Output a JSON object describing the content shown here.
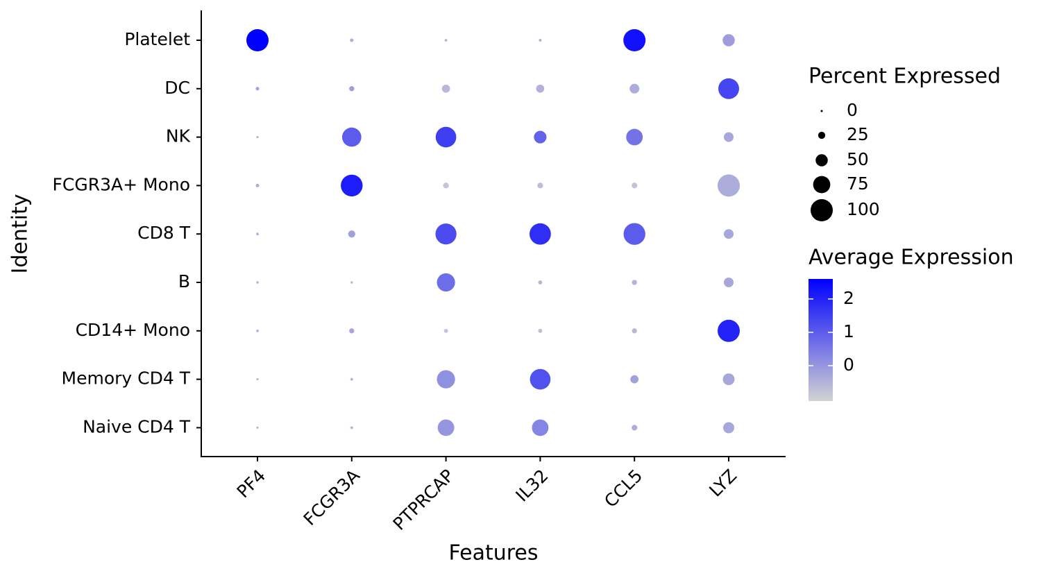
{
  "chart_data": {
    "type": "dot",
    "x_label": "Features",
    "y_label": "Identity",
    "features": [
      "PF4",
      "FCGR3A",
      "PTPRCAP",
      "IL32",
      "CCL5",
      "LYZ"
    ],
    "identities": [
      "Platelet",
      "DC",
      "NK",
      "FCGR3A+ Mono",
      "CD8 T",
      "B",
      "CD14+ Mono",
      "Memory CD4 T",
      "Naive CD4 T"
    ],
    "percent_expressed": [
      [
        100,
        7,
        3,
        4,
        100,
        50
      ],
      [
        7,
        15,
        30,
        30,
        38,
        93
      ],
      [
        1,
        85,
        92,
        52,
        72,
        38
      ],
      [
        7,
        98,
        18,
        18,
        18,
        100
      ],
      [
        3,
        25,
        94,
        96,
        98,
        38
      ],
      [
        2,
        2,
        80,
        10,
        15,
        38
      ],
      [
        3,
        15,
        10,
        10,
        15,
        100
      ],
      [
        1,
        3,
        80,
        92,
        30,
        48
      ],
      [
        1,
        3,
        72,
        72,
        18,
        45
      ]
    ],
    "average_expression": [
      [
        2.6,
        -0.4,
        -0.5,
        -0.5,
        2.3,
        -0.1
      ],
      [
        -0.2,
        -0.1,
        -0.6,
        -0.5,
        -0.4,
        1.4
      ],
      [
        -0.5,
        1.0,
        1.5,
        0.9,
        0.6,
        -0.3
      ],
      [
        -0.4,
        2.1,
        -0.8,
        -0.7,
        -0.8,
        -0.4
      ],
      [
        -0.5,
        -0.2,
        1.3,
        1.8,
        1.0,
        -0.3
      ],
      [
        -0.5,
        -0.6,
        0.7,
        -0.6,
        -0.5,
        -0.3
      ],
      [
        -0.5,
        -0.3,
        -0.8,
        -0.7,
        -0.6,
        2.0
      ],
      [
        -0.6,
        -0.5,
        0.1,
        1.2,
        -0.2,
        -0.3
      ],
      [
        -0.6,
        -0.5,
        0.0,
        0.3,
        -0.4,
        -0.3
      ]
    ],
    "size_legend_title": "Percent Expressed",
    "size_lim": [
      0,
      100
    ],
    "size_ticks": [
      0,
      25,
      50,
      75,
      100
    ],
    "color_legend_title": "Average Expression",
    "color_lim": [
      -1.06,
      2.6
    ],
    "color_ticks": [
      0,
      1,
      2
    ],
    "color_low": "#d3d3d3",
    "color_high": "#0000ff"
  }
}
